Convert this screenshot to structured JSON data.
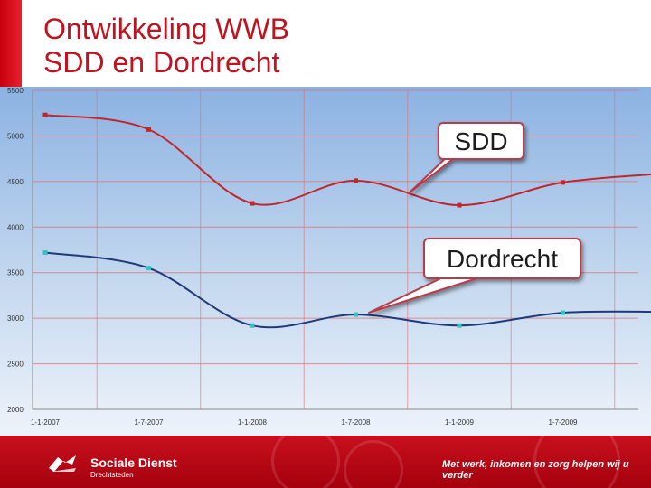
{
  "title": {
    "line1": "Ontwikkeling WWB",
    "line2": "SDD en Dordrecht"
  },
  "chart_data": {
    "type": "line",
    "title": "",
    "xlabel": "",
    "ylabel": "",
    "categories": [
      "1-1-2007",
      "1-7-2007",
      "1-1-2008",
      "1-7-2008",
      "1-1-2009",
      "1-7-2009",
      ""
    ],
    "ylim": [
      2000,
      5500
    ],
    "yticks": [
      2000,
      2500,
      3000,
      3500,
      4000,
      4500,
      5000,
      5500
    ],
    "grid": true,
    "smooth": true,
    "series": [
      {
        "name": "SDD",
        "color": "#c0272d",
        "marker_color": "#c0272d",
        "values": [
          5230,
          5070,
          4260,
          4510,
          4240,
          4490,
          4590
        ]
      },
      {
        "name": "Dordrecht",
        "color": "#1f3a7a",
        "marker_color": "#36c2c2",
        "values": [
          3720,
          3550,
          2920,
          3040,
          2920,
          3060,
          3070
        ]
      }
    ],
    "annotations": [
      {
        "text": "SDD",
        "series": 0
      },
      {
        "text": "Dordrecht",
        "series": 1
      }
    ]
  },
  "footer": {
    "brand": "Sociale Dienst",
    "brand_sub": "Drechtsteden",
    "tagline": "Met werk, inkomen en zorg helpen wij u verder",
    "logo_icon": "sociale-dienst-logo-icon",
    "background_color": "#c8101e"
  }
}
